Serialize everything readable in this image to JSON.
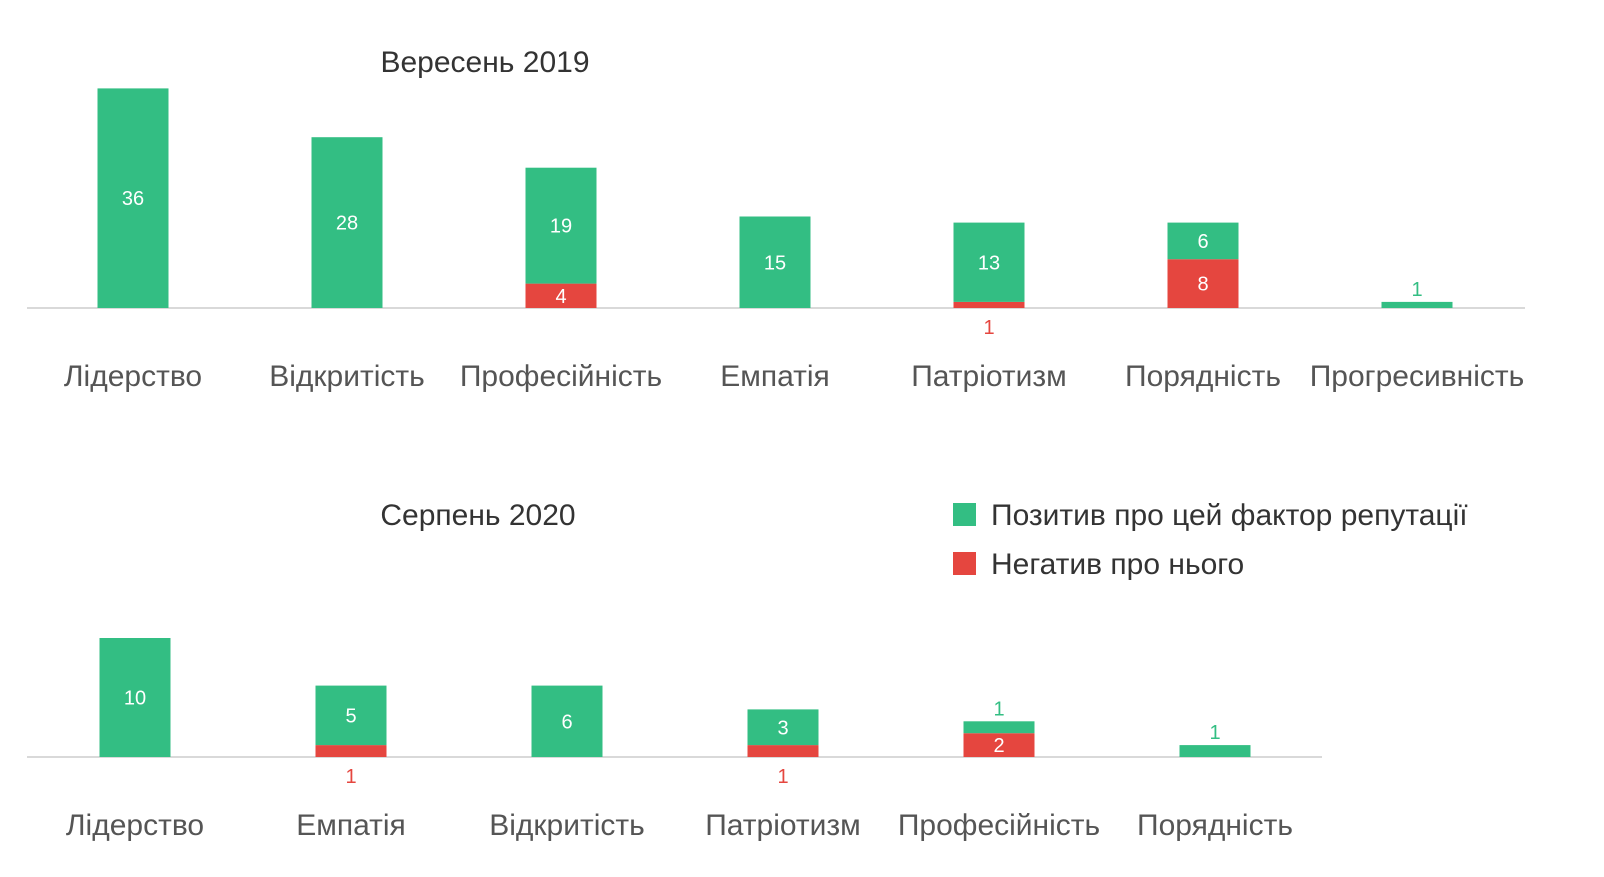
{
  "colors": {
    "positive": "#33be83",
    "negative": "#e5463f",
    "axis": "#d9d9d9"
  },
  "legend": {
    "positive_label": "Позитив про цей фактор репутації",
    "negative_label": "Негатив про нього"
  },
  "chart_data": [
    {
      "type": "bar",
      "stacked": true,
      "title": "Вересень 2019",
      "categories": [
        "Лідерство",
        "Відкритість",
        "Професійність",
        "Емпатія",
        "Патріотизм",
        "Порядність",
        "Прогресивність"
      ],
      "series": [
        {
          "key": "positive",
          "values": [
            36,
            28,
            19,
            15,
            13,
            6,
            1
          ]
        },
        {
          "key": "negative",
          "values": [
            0,
            0,
            4,
            0,
            1,
            8,
            0
          ]
        }
      ],
      "ylim": [
        0,
        36
      ]
    },
    {
      "type": "bar",
      "stacked": true,
      "title": "Серпень 2020",
      "categories": [
        "Лідерство",
        "Емпатія",
        "Відкритість",
        "Патріотизм",
        "Професійність",
        "Порядність"
      ],
      "series": [
        {
          "key": "positive",
          "values": [
            10,
            5,
            6,
            3,
            1,
            1
          ]
        },
        {
          "key": "negative",
          "values": [
            0,
            1,
            0,
            1,
            2,
            0
          ]
        }
      ],
      "ylim": [
        0,
        10
      ]
    }
  ]
}
